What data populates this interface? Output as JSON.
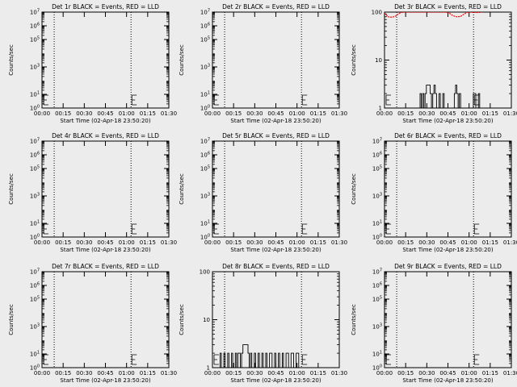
{
  "figure": {
    "background": "#ececec",
    "axis_color": "#000000",
    "events_color": "#000000",
    "lld_color": "#ff0000"
  },
  "chart_data": [
    {
      "type": "line",
      "title": "Det 1r BLACK = Events, RED = LLD",
      "ylabel": "Counts/sec",
      "xlabel": "Start Time (02-Apr-18 23:50:20)",
      "scale": "log",
      "ylim": [
        1,
        10000000
      ],
      "yticks": [
        {
          "value": 1,
          "label": "10^0"
        },
        {
          "value": 10,
          "label": "10^1"
        },
        {
          "value": 1000,
          "label": "10^3"
        },
        {
          "value": 100000,
          "label": "10^5"
        },
        {
          "value": 1000000,
          "label": "10^6"
        },
        {
          "value": 10000000,
          "label": "10^7"
        }
      ],
      "xlim": [
        0,
        100
      ],
      "xticks": [
        "00:00",
        "00:15",
        "00:30",
        "00:45",
        "01:00",
        "01:15",
        "01:30"
      ],
      "vlines": [
        9.6,
        70.2
      ],
      "events": [],
      "lld": []
    },
    {
      "type": "line",
      "title": "Det 2r BLACK = Events, RED = LLD",
      "ylabel": "Counts/sec",
      "xlabel": "Start Time (02-Apr-18 23:50:20)",
      "scale": "log",
      "ylim": [
        1,
        10000000
      ],
      "yticks": [
        {
          "value": 1,
          "label": "10^0"
        },
        {
          "value": 10,
          "label": "10^1"
        },
        {
          "value": 1000,
          "label": "10^3"
        },
        {
          "value": 100000,
          "label": "10^5"
        },
        {
          "value": 1000000,
          "label": "10^6"
        },
        {
          "value": 10000000,
          "label": "10^7"
        }
      ],
      "xlim": [
        0,
        100
      ],
      "xticks": [
        "00:00",
        "00:15",
        "00:30",
        "00:45",
        "01:00",
        "01:15",
        "01:30"
      ],
      "vlines": [
        9.6,
        70.2
      ],
      "events": [],
      "lld": []
    },
    {
      "type": "line",
      "title": "Det 3r BLACK = Events, RED = LLD",
      "ylabel": "Counts/sec",
      "xlabel": "Start Time (02-Apr-18 23:50:20)",
      "scale": "log",
      "ylim": [
        1,
        100
      ],
      "yticks": [
        {
          "value": 1,
          "label": "1"
        },
        {
          "value": 10,
          "label": "10"
        },
        {
          "value": 100,
          "label": "100"
        }
      ],
      "xlim": [
        0,
        100
      ],
      "xticks": [
        "00:00",
        "00:15",
        "00:30",
        "00:45",
        "01:00",
        "01:15",
        "01:30"
      ],
      "vlines": [
        9.6,
        70.2
      ],
      "events": [
        [
          27,
          1
        ],
        [
          28,
          1
        ],
        [
          28,
          2
        ],
        [
          29,
          2
        ],
        [
          29,
          1
        ],
        [
          30,
          1
        ],
        [
          30,
          2
        ],
        [
          31,
          2
        ],
        [
          31,
          1
        ],
        [
          32,
          1
        ],
        [
          32,
          2
        ],
        [
          33,
          2
        ],
        [
          33,
          3
        ],
        [
          36,
          3
        ],
        [
          36,
          2
        ],
        [
          37,
          2
        ],
        [
          37,
          1
        ],
        [
          38,
          1
        ],
        [
          38,
          2
        ],
        [
          39,
          2
        ],
        [
          39,
          3
        ],
        [
          40,
          3
        ],
        [
          40,
          2
        ],
        [
          41,
          2
        ],
        [
          41,
          1
        ],
        [
          43,
          1
        ],
        [
          43,
          2
        ],
        [
          44,
          2
        ],
        [
          44,
          1
        ],
        [
          46,
          1
        ],
        [
          46,
          2
        ],
        [
          47,
          2
        ],
        [
          47,
          1
        ],
        [
          55,
          1
        ],
        [
          55,
          2
        ],
        [
          56,
          2
        ],
        [
          56,
          3
        ],
        [
          57,
          3
        ],
        [
          57,
          2
        ],
        [
          58,
          2
        ],
        [
          58,
          1
        ],
        [
          59,
          1
        ],
        [
          59,
          2
        ],
        [
          60,
          2
        ],
        [
          60,
          1
        ],
        [
          70,
          1
        ],
        [
          70,
          2
        ],
        [
          72,
          2
        ],
        [
          72,
          1
        ],
        [
          74,
          1
        ],
        [
          74,
          2
        ],
        [
          75,
          2
        ],
        [
          75,
          1
        ]
      ],
      "lld": [
        [
          0,
          95
        ],
        [
          3,
          80
        ],
        [
          6,
          78
        ],
        [
          9,
          83
        ],
        [
          11,
          92
        ],
        [
          13,
          98
        ],
        [
          16,
          100
        ],
        [
          48,
          100
        ],
        [
          51,
          95
        ],
        [
          54,
          84
        ],
        [
          57,
          80
        ],
        [
          60,
          81
        ],
        [
          62,
          88
        ],
        [
          64,
          95
        ],
        [
          66,
          100
        ],
        [
          74,
          98
        ],
        [
          77,
          100
        ]
      ]
    },
    {
      "type": "line",
      "title": "Det 4r BLACK = Events, RED = LLD",
      "ylabel": "Counts/sec",
      "xlabel": "Start Time (02-Apr-18 23:50:20)",
      "scale": "log",
      "ylim": [
        1,
        10000000
      ],
      "yticks": [
        {
          "value": 1,
          "label": "10^0"
        },
        {
          "value": 10,
          "label": "10^1"
        },
        {
          "value": 1000,
          "label": "10^3"
        },
        {
          "value": 100000,
          "label": "10^5"
        },
        {
          "value": 1000000,
          "label": "10^6"
        },
        {
          "value": 10000000,
          "label": "10^7"
        }
      ],
      "xlim": [
        0,
        100
      ],
      "xticks": [
        "00:00",
        "00:15",
        "00:30",
        "00:45",
        "01:00",
        "01:15",
        "01:30"
      ],
      "vlines": [
        9.6,
        70.2
      ],
      "events": [],
      "lld": []
    },
    {
      "type": "line",
      "title": "Det 5r BLACK = Events, RED = LLD",
      "ylabel": "Counts/sec",
      "xlabel": "Start Time (02-Apr-18 23:50:20)",
      "scale": "log",
      "ylim": [
        1,
        10000000
      ],
      "yticks": [
        {
          "value": 1,
          "label": "10^0"
        },
        {
          "value": 10,
          "label": "10^1"
        },
        {
          "value": 1000,
          "label": "10^3"
        },
        {
          "value": 100000,
          "label": "10^5"
        },
        {
          "value": 1000000,
          "label": "10^6"
        },
        {
          "value": 10000000,
          "label": "10^7"
        }
      ],
      "xlim": [
        0,
        100
      ],
      "xticks": [
        "00:00",
        "00:15",
        "00:30",
        "00:45",
        "01:00",
        "01:15",
        "01:30"
      ],
      "vlines": [
        9.6,
        70.2
      ],
      "events": [],
      "lld": []
    },
    {
      "type": "line",
      "title": "Det 6r BLACK = Events, RED = LLD",
      "ylabel": "Counts/sec",
      "xlabel": "Start Time (02-Apr-18 23:50:20)",
      "scale": "log",
      "ylim": [
        1,
        10000000
      ],
      "yticks": [
        {
          "value": 1,
          "label": "10^0"
        },
        {
          "value": 10,
          "label": "10^1"
        },
        {
          "value": 1000,
          "label": "10^3"
        },
        {
          "value": 100000,
          "label": "10^5"
        },
        {
          "value": 1000000,
          "label": "10^6"
        },
        {
          "value": 10000000,
          "label": "10^7"
        }
      ],
      "xlim": [
        0,
        100
      ],
      "xticks": [
        "00:00",
        "00:15",
        "00:30",
        "00:45",
        "01:00",
        "01:15",
        "01:30"
      ],
      "vlines": [
        9.6,
        70.2
      ],
      "events": [],
      "lld": []
    },
    {
      "type": "line",
      "title": "Det 7r BLACK = Events, RED = LLD",
      "ylabel": "Counts/sec",
      "xlabel": "Start Time (02-Apr-18 23:50:20)",
      "scale": "log",
      "ylim": [
        1,
        10000000
      ],
      "yticks": [
        {
          "value": 1,
          "label": "10^0"
        },
        {
          "value": 10,
          "label": "10^1"
        },
        {
          "value": 1000,
          "label": "10^3"
        },
        {
          "value": 100000,
          "label": "10^5"
        },
        {
          "value": 1000000,
          "label": "10^6"
        },
        {
          "value": 10000000,
          "label": "10^7"
        }
      ],
      "xlim": [
        0,
        100
      ],
      "xticks": [
        "00:00",
        "00:15",
        "00:30",
        "00:45",
        "01:00",
        "01:15",
        "01:30"
      ],
      "vlines": [
        9.6,
        70.2
      ],
      "events": [],
      "lld": []
    },
    {
      "type": "line",
      "title": "Det 8r BLACK = Events, RED = LLD",
      "ylabel": "Counts/sec",
      "xlabel": "Start Time (02-Apr-18 23:50:20)",
      "scale": "log",
      "ylim": [
        1,
        100
      ],
      "yticks": [
        {
          "value": 1,
          "label": "1"
        },
        {
          "value": 10,
          "label": "10"
        },
        {
          "value": 100,
          "label": "100"
        }
      ],
      "xlim": [
        0,
        100
      ],
      "xticks": [
        "00:00",
        "00:15",
        "00:30",
        "00:45",
        "01:00",
        "01:15",
        "01:30"
      ],
      "vlines": [
        9.6,
        70.2
      ],
      "events": [
        [
          6,
          1
        ],
        [
          6,
          2
        ],
        [
          7,
          2
        ],
        [
          7,
          1
        ],
        [
          9,
          1
        ],
        [
          9,
          2
        ],
        [
          10,
          2
        ],
        [
          10,
          1
        ],
        [
          12,
          1
        ],
        [
          12,
          2
        ],
        [
          13,
          2
        ],
        [
          13,
          1
        ],
        [
          15,
          1
        ],
        [
          15,
          2
        ],
        [
          16,
          2
        ],
        [
          16,
          1
        ],
        [
          18,
          1
        ],
        [
          18,
          2
        ],
        [
          19,
          2
        ],
        [
          19,
          1
        ],
        [
          20,
          1
        ],
        [
          20,
          2
        ],
        [
          22,
          2
        ],
        [
          22,
          1
        ],
        [
          23,
          1
        ],
        [
          23,
          2
        ],
        [
          24,
          2
        ],
        [
          24,
          3
        ],
        [
          28,
          3
        ],
        [
          28,
          2
        ],
        [
          29,
          2
        ],
        [
          29,
          1
        ],
        [
          30,
          1
        ],
        [
          30,
          2
        ],
        [
          31,
          2
        ],
        [
          31,
          1
        ],
        [
          33,
          1
        ],
        [
          33,
          2
        ],
        [
          34,
          2
        ],
        [
          34,
          1
        ],
        [
          36,
          1
        ],
        [
          36,
          2
        ],
        [
          37,
          2
        ],
        [
          37,
          1
        ],
        [
          39,
          1
        ],
        [
          39,
          2
        ],
        [
          40,
          2
        ],
        [
          40,
          1
        ],
        [
          42,
          1
        ],
        [
          42,
          2
        ],
        [
          43,
          2
        ],
        [
          43,
          1
        ],
        [
          45,
          1
        ],
        [
          45,
          2
        ],
        [
          47,
          2
        ],
        [
          47,
          1
        ],
        [
          49,
          1
        ],
        [
          49,
          2
        ],
        [
          50,
          2
        ],
        [
          50,
          1
        ],
        [
          52,
          1
        ],
        [
          52,
          2
        ],
        [
          53,
          2
        ],
        [
          53,
          1
        ],
        [
          55,
          1
        ],
        [
          55,
          2
        ],
        [
          56,
          2
        ],
        [
          56,
          1
        ],
        [
          58,
          1
        ],
        [
          58,
          2
        ],
        [
          60,
          2
        ],
        [
          60,
          1
        ],
        [
          62,
          1
        ],
        [
          62,
          2
        ],
        [
          64,
          2
        ],
        [
          64,
          1
        ],
        [
          66,
          1
        ],
        [
          66,
          2
        ],
        [
          68,
          2
        ],
        [
          68,
          1
        ]
      ],
      "lld": []
    },
    {
      "type": "line",
      "title": "Det 9r BLACK = Events, RED = LLD",
      "ylabel": "Counts/sec",
      "xlabel": "Start Time (02-Apr-18 23:50:20)",
      "scale": "log",
      "ylim": [
        1,
        10000000
      ],
      "yticks": [
        {
          "value": 1,
          "label": "10^0"
        },
        {
          "value": 10,
          "label": "10^1"
        },
        {
          "value": 1000,
          "label": "10^3"
        },
        {
          "value": 100000,
          "label": "10^5"
        },
        {
          "value": 1000000,
          "label": "10^6"
        },
        {
          "value": 10000000,
          "label": "10^7"
        }
      ],
      "xlim": [
        0,
        100
      ],
      "xticks": [
        "00:00",
        "00:15",
        "00:30",
        "00:45",
        "01:00",
        "01:15",
        "01:30"
      ],
      "vlines": [
        9.6,
        70.2
      ],
      "events": [],
      "lld": []
    }
  ]
}
